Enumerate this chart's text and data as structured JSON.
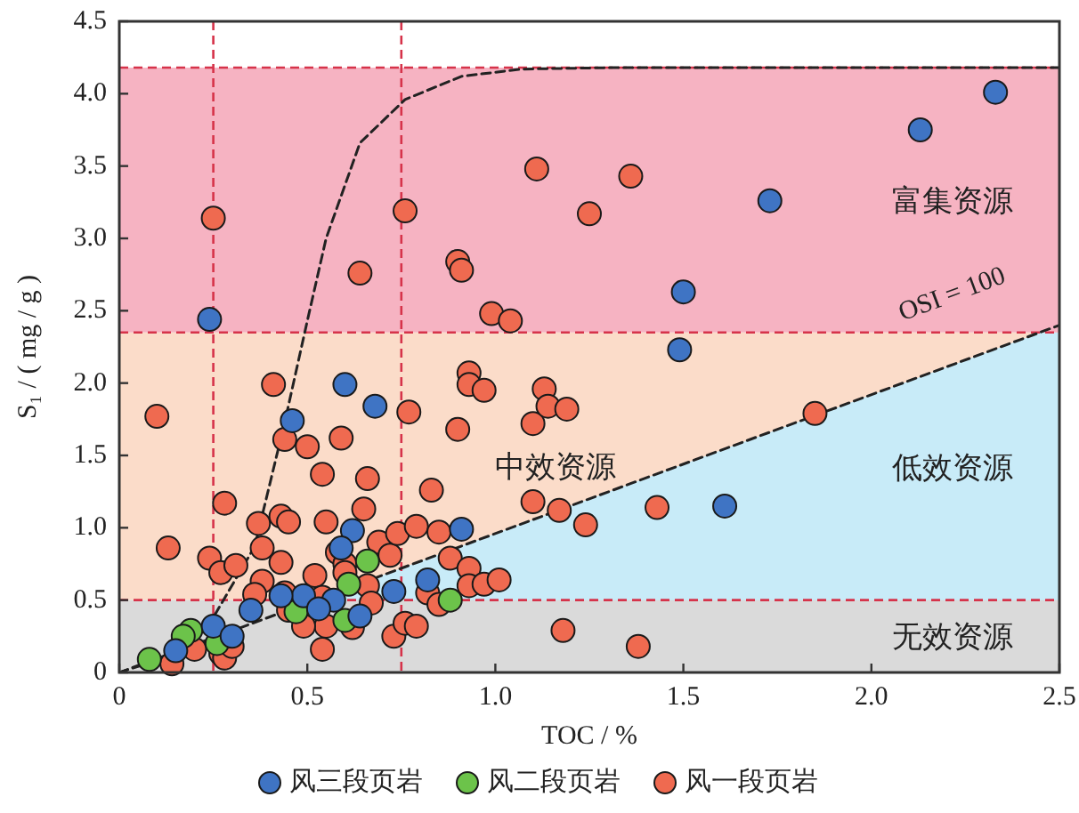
{
  "chart_data": {
    "type": "scatter",
    "xlabel": "TOC / %",
    "ylabel": "S₁ / ( mg / g )",
    "xlim": [
      0,
      2.5
    ],
    "ylim": [
      0,
      4.5
    ],
    "xticks": [
      0,
      0.5,
      {
        "value": 1,
        "label": "1.0"
      },
      1.5,
      {
        "value": 2,
        "label": "2.0"
      },
      2.5
    ],
    "yticks": [
      0,
      0.5,
      {
        "value": 1,
        "label": "1.0"
      },
      1.5,
      {
        "value": 2,
        "label": "2.0"
      },
      2.5,
      {
        "value": 3,
        "label": "3.0"
      },
      3.5,
      {
        "value": 4,
        "label": "4.0"
      },
      4.5
    ],
    "grid": false,
    "legend": "bottom",
    "bands": [
      {
        "axis": "y",
        "from": 0.5,
        "to": 2.35,
        "label": "中效资源",
        "color": "#fbdcc9"
      },
      {
        "axis": "y",
        "from": 2.35,
        "to": 4.18,
        "label": "富集资源",
        "color": "#f6b3c2"
      },
      {
        "axis": "y",
        "from": 0,
        "to": 0.5,
        "label": "无效资源",
        "color": "#dadada"
      }
    ],
    "ref_lines": [
      {
        "axis": "x",
        "value": 0.25,
        "color": "#d6334a",
        "line_style": "dashed"
      },
      {
        "axis": "x",
        "value": 0.75,
        "color": "#d6334a",
        "line_style": "dashed"
      },
      {
        "axis": "y",
        "value": 0.5,
        "color": "#d6334a",
        "line_style": "dashed"
      },
      {
        "axis": "y",
        "value": 2.35,
        "color": "#d6334a",
        "line_style": "dashed"
      },
      {
        "axis": "y",
        "value": 4.18,
        "color": "#d6334a",
        "line_style": "dashed"
      }
    ],
    "annotations": [
      "低效资源",
      "OSI = 100"
    ],
    "series": [
      {
        "type": "area",
        "color": "#c8ebf8",
        "x": [
          0.52,
          2.45,
          2.5
        ],
        "values": [
          0.5,
          2.35,
          2.35
        ]
      },
      {
        "type": "line",
        "color": "#222222",
        "line_style": "dashed",
        "x": [
          0,
          2.5
        ],
        "values": [
          0,
          2.4
        ]
      },
      {
        "type": "line",
        "color": "#222222",
        "line_style": "dashed",
        "x": [
          0,
          0.12,
          0.25,
          0.36,
          0.44,
          0.5,
          0.55,
          0.64,
          0.76,
          0.91,
          1.07,
          1.3,
          2.5
        ],
        "values": [
          0,
          0.1,
          0.38,
          0.87,
          1.73,
          2.43,
          3.0,
          3.66,
          3.96,
          4.12,
          4.17,
          4.18,
          4.18
        ]
      },
      {
        "name": "风三段页岩",
        "color": "#3f74c4",
        "marker": "circle",
        "x": [
          2.33,
          2.13,
          1.73,
          1.5,
          1.49,
          1.61,
          0.24,
          0.6,
          0.68,
          0.46,
          0.62,
          0.91,
          0.59,
          0.82,
          0.73,
          0.49,
          0.57,
          0.43,
          0.35,
          0.25,
          0.3,
          0.15,
          0.64,
          0.53
        ],
        "values": [
          4.01,
          3.75,
          3.26,
          2.63,
          2.23,
          1.15,
          2.44,
          1.99,
          1.84,
          1.74,
          0.98,
          0.99,
          0.86,
          0.64,
          0.56,
          0.53,
          0.5,
          0.53,
          0.43,
          0.32,
          0.25,
          0.15,
          0.39,
          0.44
        ]
      },
      {
        "name": "风二段页岩",
        "color": "#6cc34a",
        "marker": "circle",
        "x": [
          0.66,
          0.61,
          0.88,
          0.47,
          0.6,
          0.19,
          0.17,
          0.26,
          0.08
        ],
        "values": [
          0.77,
          0.61,
          0.5,
          0.42,
          0.36,
          0.29,
          0.25,
          0.2,
          0.09
        ]
      },
      {
        "name": "风一段页岩",
        "color": "#ef6a50",
        "marker": "circle",
        "x": [
          0.25,
          0.76,
          1.11,
          1.36,
          1.25,
          0.64,
          0.9,
          0.91,
          0.99,
          1.04,
          0.1,
          0.41,
          0.44,
          0.5,
          0.59,
          0.77,
          0.9,
          0.93,
          0.93,
          0.97,
          0.54,
          0.66,
          0.83,
          0.65,
          0.28,
          0.37,
          0.43,
          0.45,
          0.55,
          0.13,
          0.24,
          0.27,
          0.31,
          0.38,
          0.43,
          0.38,
          0.52,
          0.36,
          0.44,
          0.45,
          0.54,
          0.58,
          0.6,
          0.6,
          0.69,
          0.72,
          0.74,
          0.79,
          0.85,
          0.88,
          0.93,
          0.93,
          0.97,
          1.01,
          0.66,
          0.67,
          0.82,
          0.85,
          0.62,
          0.55,
          0.49,
          0.73,
          0.76,
          0.79,
          0.54,
          0.2,
          0.14,
          0.27,
          0.28,
          0.3,
          1.1,
          1.13,
          1.14,
          1.1,
          1.19,
          1.85,
          1.17,
          1.24,
          1.43,
          1.18,
          1.38
        ],
        "values": [
          3.14,
          3.19,
          3.48,
          3.43,
          3.17,
          2.76,
          2.84,
          2.78,
          2.48,
          2.43,
          1.77,
          1.99,
          1.61,
          1.56,
          1.62,
          1.8,
          1.68,
          2.07,
          1.99,
          1.95,
          1.37,
          1.34,
          1.26,
          1.13,
          1.17,
          1.03,
          1.08,
          1.04,
          1.04,
          0.86,
          0.79,
          0.69,
          0.74,
          0.86,
          0.76,
          0.63,
          0.67,
          0.54,
          0.55,
          0.43,
          0.52,
          0.83,
          0.75,
          0.69,
          0.9,
          0.81,
          0.96,
          1.01,
          0.97,
          0.79,
          0.72,
          0.6,
          0.61,
          0.64,
          0.6,
          0.48,
          0.55,
          0.47,
          0.31,
          0.32,
          0.32,
          0.25,
          0.34,
          0.32,
          0.16,
          0.16,
          0.06,
          0.13,
          0.1,
          0.18,
          1.72,
          1.96,
          1.84,
          1.18,
          1.82,
          1.79,
          1.12,
          1.02,
          1.14,
          0.29,
          0.18
        ]
      }
    ]
  }
}
